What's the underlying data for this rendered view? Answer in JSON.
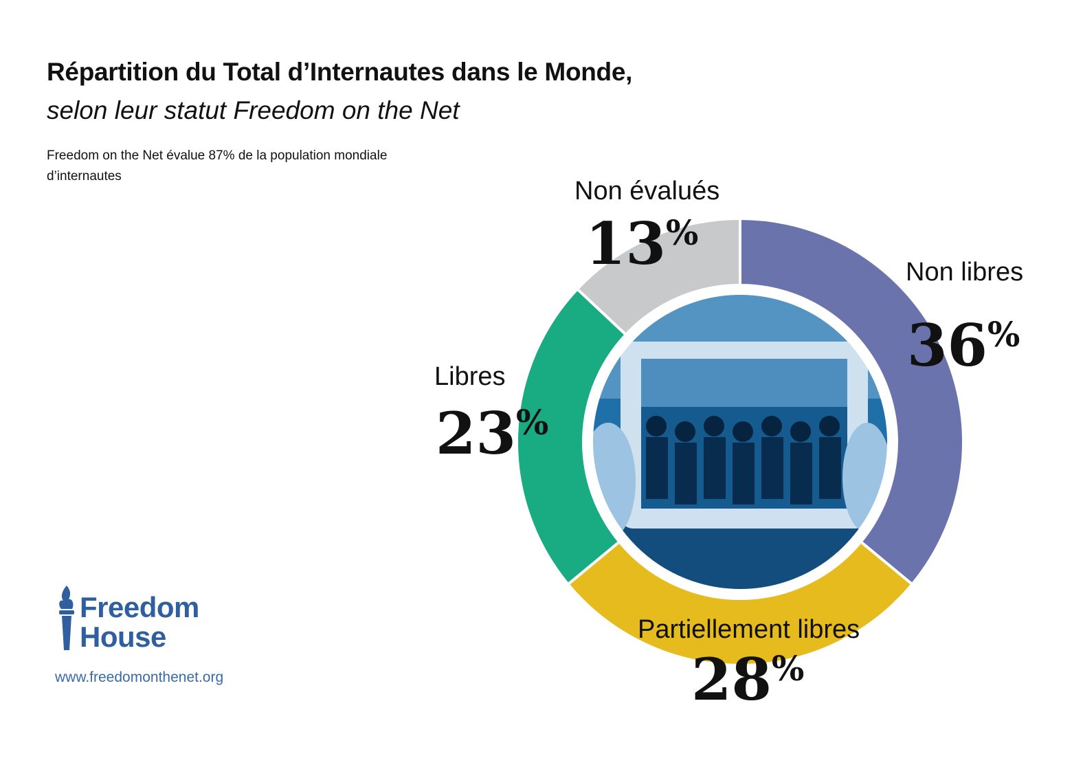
{
  "title": "Répartition du Total d’Internautes dans le Monde,",
  "subtitle": "selon leur statut Freedom on the Net",
  "note": "Freedom on the Net évalue 87% de la population mondiale d’internautes",
  "logo": {
    "name_line1": "Freedom",
    "name_line2": "House",
    "icon": "torch-icon",
    "color": "#2f5f9e"
  },
  "url": "www.freedomonthenet.org",
  "center_image": {
    "icon": "photo-tablet-police-icon"
  },
  "chart_data": {
    "type": "pie",
    "donut": true,
    "slices": [
      {
        "label": "Non libres",
        "value": 36,
        "value_label": "36",
        "unit": "%",
        "color": "#6b73ad"
      },
      {
        "label": "Partiellement libres",
        "value": 28,
        "value_label": "28",
        "unit": "%",
        "color": "#e5bb1e"
      },
      {
        "label": "Libres",
        "value": 23,
        "value_label": "23",
        "unit": "%",
        "color": "#19ab81"
      },
      {
        "label": "Non évalués",
        "value": 13,
        "value_label": "13",
        "unit": "%",
        "color": "#c8c9cb"
      }
    ]
  }
}
